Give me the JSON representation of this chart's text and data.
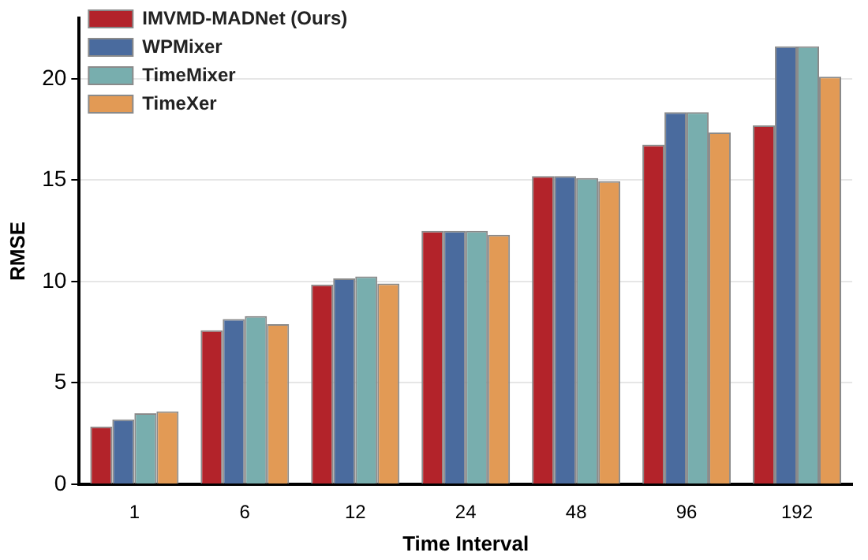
{
  "chart_data": {
    "type": "bar",
    "xlabel": "Time Interval",
    "ylabel": "RMSE",
    "categories": [
      "1",
      "6",
      "12",
      "24",
      "48",
      "96",
      "192"
    ],
    "series": [
      {
        "name": "IMVMD-MADNet (Ours)",
        "color": "#b3232a",
        "values": [
          2.85,
          7.6,
          9.85,
          12.5,
          15.2,
          16.75,
          17.7
        ]
      },
      {
        "name": "WPMixer",
        "color": "#4a6b9e",
        "values": [
          3.2,
          8.15,
          10.15,
          12.5,
          15.2,
          18.35,
          21.6
        ]
      },
      {
        "name": "TimeMixer",
        "color": "#78aeae",
        "values": [
          3.5,
          8.3,
          10.25,
          12.5,
          15.1,
          18.35,
          21.6
        ]
      },
      {
        "name": "TimeXer",
        "color": "#e29a55",
        "values": [
          3.6,
          7.9,
          9.9,
          12.3,
          14.95,
          17.35,
          20.1
        ]
      }
    ],
    "ylim": [
      0,
      23
    ],
    "yticks": [
      0,
      5,
      10,
      15,
      20
    ],
    "grid": "y",
    "legend": "top left"
  }
}
